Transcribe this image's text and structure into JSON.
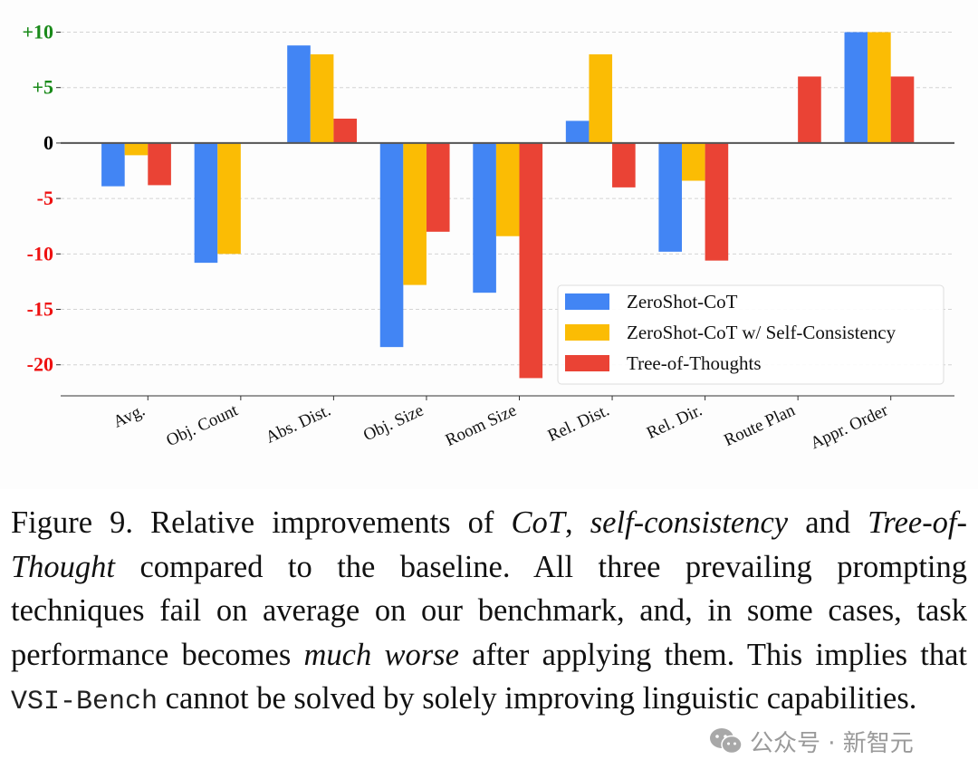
{
  "chart_data": {
    "type": "bar",
    "title": "",
    "xlabel": "",
    "ylabel": "",
    "categories": [
      "Avg.",
      "Obj. Count",
      "Abs. Dist.",
      "Obj. Size",
      "Room Size",
      "Rel. Dist.",
      "Rel. Dir.",
      "Route Plan",
      "Appr. Order"
    ],
    "series": [
      {
        "name": "ZeroShot-CoT",
        "color": "#4285F4",
        "values": [
          -3.9,
          -10.8,
          8.8,
          -18.4,
          -13.5,
          2.0,
          -9.8,
          0.0,
          10.0
        ]
      },
      {
        "name": "ZeroShot-CoT w/ Self-Consistency",
        "color": "#FBBC04",
        "values": [
          -1.1,
          -10.0,
          8.0,
          -12.8,
          -8.4,
          8.0,
          -3.4,
          0.0,
          10.0
        ]
      },
      {
        "name": "Tree-of-Thoughts",
        "color": "#EA4335",
        "values": [
          -3.8,
          0.0,
          2.2,
          -8.0,
          -21.2,
          -4.0,
          -10.6,
          6.0,
          6.0
        ]
      }
    ],
    "ylim": [
      -22.8,
      12.9
    ],
    "yticks": [
      {
        "value": 10,
        "label": "+10",
        "color": "#1a8a1a"
      },
      {
        "value": 5,
        "label": "+5",
        "color": "#1a8a1a"
      },
      {
        "value": 0,
        "label": "0",
        "color": "#000000"
      },
      {
        "value": -5,
        "label": "-5",
        "color": "#ee1111"
      },
      {
        "value": -10,
        "label": "-10",
        "color": "#ee1111"
      },
      {
        "value": -15,
        "label": "-15",
        "color": "#ee1111"
      },
      {
        "value": -20,
        "label": "-20",
        "color": "#ee1111"
      }
    ],
    "grid": true,
    "grid_style": "dashed horizontal",
    "xtick_rotation_deg": 25,
    "legend_position": "lower-right"
  },
  "caption": {
    "figure_label": "Figure 9.",
    "segments": [
      {
        "text": " Relative improvements of ",
        "style": "normal"
      },
      {
        "text": "CoT",
        "style": "italic"
      },
      {
        "text": ", ",
        "style": "normal"
      },
      {
        "text": "self-consistency",
        "style": "italic"
      },
      {
        "text": " and ",
        "style": "normal"
      },
      {
        "text": "Tree-of-Thought",
        "style": "italic"
      },
      {
        "text": " compared to the baseline.  All three prevailing prompting techniques fail on average on our benchmark, and, in some cases, task performance becomes ",
        "style": "normal"
      },
      {
        "text": "much worse",
        "style": "italic"
      },
      {
        "text": " after applying them.  This implies that ",
        "style": "normal"
      },
      {
        "text": "VSI-Bench",
        "style": "mono"
      },
      {
        "text": " cannot be solved by solely improving linguistic capabilities.",
        "style": "normal"
      }
    ]
  },
  "watermark": {
    "icon": "wechat-icon",
    "text": "公众号 · 新智元"
  }
}
